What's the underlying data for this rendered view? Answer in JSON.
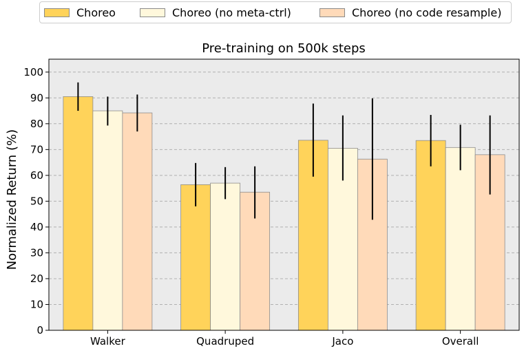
{
  "chart_data": {
    "type": "bar",
    "title": "Pre-training on 500k steps",
    "ylabel": "Normalized Return (%)",
    "xlabel": "",
    "ylim": [
      0,
      105
    ],
    "yticks": [
      0,
      10,
      20,
      30,
      40,
      50,
      60,
      70,
      80,
      90,
      100
    ],
    "grid": true,
    "legend_position": "top",
    "categories": [
      "Walker",
      "Quadruped",
      "Jaco",
      "Overall"
    ],
    "series": [
      {
        "name": "Choreo",
        "color": "#FFD35A",
        "values": [
          90.5,
          56.4,
          73.6,
          73.5
        ],
        "err_low": [
          85.0,
          48.0,
          59.5,
          63.5
        ],
        "err_high": [
          96.0,
          64.8,
          87.8,
          83.4
        ]
      },
      {
        "name": "Choreo (no meta-ctrl)",
        "color": "#FFF8DC",
        "values": [
          85.0,
          57.0,
          70.5,
          70.8
        ],
        "err_low": [
          79.3,
          50.8,
          58.0,
          62.0
        ],
        "err_high": [
          90.5,
          63.2,
          83.2,
          79.6
        ]
      },
      {
        "name": "Choreo (no code resample)",
        "color": "#FFDAB9",
        "values": [
          84.2,
          53.5,
          66.3,
          68.0
        ],
        "err_low": [
          77.0,
          43.3,
          42.8,
          52.6
        ],
        "err_high": [
          91.3,
          63.5,
          89.8,
          83.2
        ]
      }
    ]
  }
}
